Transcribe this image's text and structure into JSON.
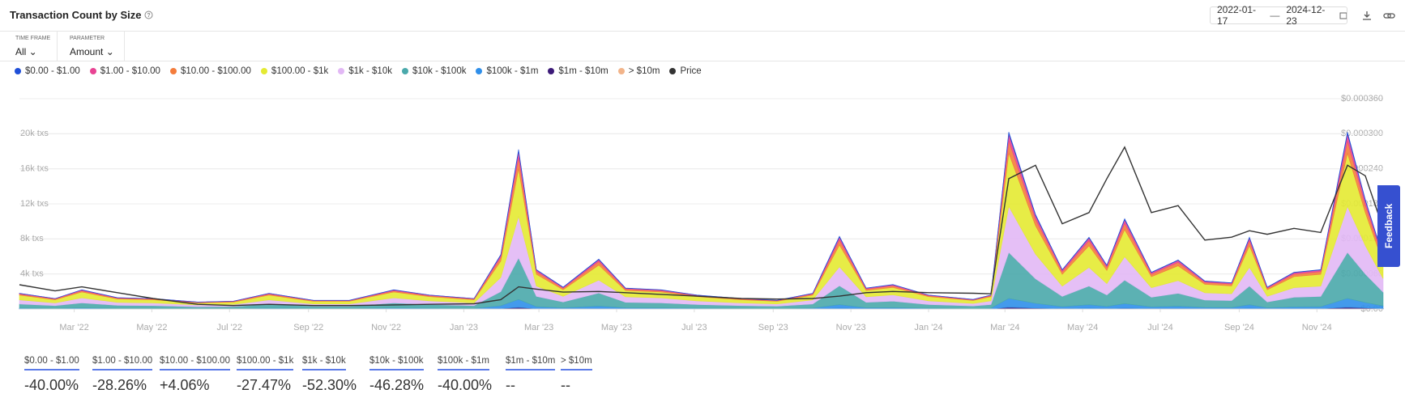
{
  "header": {
    "title": "Transaction Count by Size",
    "date_from": "2022-01-17",
    "date_to": "2024-12-23",
    "filters": [
      {
        "label": "TIME FRAME",
        "value": "All"
      },
      {
        "label": "PARAMETER",
        "value": "Amount"
      }
    ],
    "feedback": "Feedback"
  },
  "chart_data": {
    "type": "area",
    "x": [
      "2022-01-17",
      "2022-02-14",
      "2022-03-07",
      "2022-04-04",
      "2022-05-02",
      "2022-06-06",
      "2022-07-04",
      "2022-08-01",
      "2022-09-05",
      "2022-10-03",
      "2022-11-07",
      "2022-12-05",
      "2023-01-09",
      "2023-01-30",
      "2023-02-13",
      "2023-02-27",
      "2023-03-20",
      "2023-04-17",
      "2023-05-08",
      "2023-06-05",
      "2023-07-03",
      "2023-08-07",
      "2023-09-04",
      "2023-10-02",
      "2023-10-23",
      "2023-11-13",
      "2023-12-04",
      "2024-01-01",
      "2024-02-05",
      "2024-02-19",
      "2024-03-04",
      "2024-03-25",
      "2024-04-15",
      "2024-05-06",
      "2024-05-20",
      "2024-06-03",
      "2024-06-24",
      "2024-07-15",
      "2024-08-05",
      "2024-08-26",
      "2024-09-09",
      "2024-09-23",
      "2024-10-14",
      "2024-11-04",
      "2024-11-25",
      "2024-12-09",
      "2024-12-23"
    ],
    "xlim": [
      "2022-01-17",
      "2024-12-23"
    ],
    "xticks": [
      {
        "value": "2022-03-01",
        "label": "Mar '22"
      },
      {
        "value": "2022-05-01",
        "label": "May '22"
      },
      {
        "value": "2022-07-01",
        "label": "Jul '22"
      },
      {
        "value": "2022-09-01",
        "label": "Sep '22"
      },
      {
        "value": "2022-11-01",
        "label": "Nov '22"
      },
      {
        "value": "2023-01-01",
        "label": "Jan '23"
      },
      {
        "value": "2023-03-01",
        "label": "Mar '23"
      },
      {
        "value": "2023-05-01",
        "label": "May '23"
      },
      {
        "value": "2023-07-01",
        "label": "Jul '23"
      },
      {
        "value": "2023-09-01",
        "label": "Sep '23"
      },
      {
        "value": "2023-11-01",
        "label": "Nov '23"
      },
      {
        "value": "2024-01-01",
        "label": "Jan '24"
      },
      {
        "value": "2024-03-01",
        "label": "Mar '24"
      },
      {
        "value": "2024-05-01",
        "label": "May '24"
      },
      {
        "value": "2024-07-01",
        "label": "Jul '24"
      },
      {
        "value": "2024-09-01",
        "label": "Sep '24"
      },
      {
        "value": "2024-11-01",
        "label": "Nov '24"
      }
    ],
    "ylim": [
      0,
      24000
    ],
    "yticks": [
      {
        "value": 4000,
        "label": "4k txs"
      },
      {
        "value": 8000,
        "label": "8k txs"
      },
      {
        "value": 12000,
        "label": "12k txs"
      },
      {
        "value": 16000,
        "label": "16k txs"
      },
      {
        "value": 20000,
        "label": "20k txs"
      }
    ],
    "y2lim": [
      0,
      0.00036
    ],
    "y2ticks": [
      {
        "value": 0,
        "label": "$0.00"
      },
      {
        "value": 6e-05,
        "label": "$0.000060"
      },
      {
        "value": 0.00012,
        "label": "$0.000120"
      },
      {
        "value": 0.00018,
        "label": "$0.000180"
      },
      {
        "value": 0.00024,
        "label": "$0.000240"
      },
      {
        "value": 0.0003,
        "label": "$0.000300"
      },
      {
        "value": 0.00036,
        "label": "$0.000360"
      }
    ],
    "grid": true,
    "series": [
      {
        "name": "$0.00 - $1.00",
        "color": "#1f4fd8",
        "values": [
          18,
          12,
          22,
          13,
          12,
          8,
          9,
          18,
          10,
          10,
          22,
          16,
          12,
          62,
          182,
          45,
          25,
          57,
          24,
          22,
          16,
          12,
          10,
          18,
          83,
          24,
          28,
          16,
          11,
          16,
          202,
          108,
          45,
          82,
          50,
          103,
          42,
          56,
          32,
          30,
          82,
          25,
          42,
          45,
          202,
          125,
          60
        ]
      },
      {
        "name": "$1.00 - $10.00",
        "color": "#e84393",
        "values": [
          72,
          48,
          88,
          52,
          48,
          32,
          36,
          72,
          40,
          40,
          88,
          64,
          48,
          248,
          728,
          180,
          100,
          228,
          96,
          88,
          64,
          48,
          40,
          72,
          332,
          96,
          112,
          64,
          44,
          64,
          808,
          432,
          180,
          328,
          200,
          412,
          168,
          224,
          128,
          120,
          328,
          100,
          168,
          180,
          808,
          500,
          240
        ]
      },
      {
        "name": "$10.00 - $100.00",
        "color": "#f47c3c",
        "values": [
          126,
          84,
          154,
          91,
          84,
          56,
          63,
          126,
          70,
          70,
          154,
          112,
          84,
          434,
          1274,
          315,
          175,
          399,
          168,
          154,
          112,
          84,
          70,
          126,
          581,
          168,
          196,
          112,
          77,
          112,
          1414,
          756,
          315,
          574,
          350,
          721,
          294,
          392,
          224,
          210,
          574,
          175,
          294,
          315,
          1414,
          875,
          420
        ]
      },
      {
        "name": "$100.00 - $1k",
        "color": "#e4ea32",
        "values": [
          540,
          360,
          660,
          390,
          360,
          240,
          270,
          540,
          300,
          300,
          660,
          480,
          360,
          1860,
          5460,
          1350,
          750,
          1710,
          720,
          660,
          480,
          360,
          300,
          540,
          2490,
          720,
          840,
          480,
          330,
          480,
          6060,
          3240,
          1350,
          2460,
          1500,
          3090,
          1260,
          1680,
          960,
          900,
          2460,
          750,
          1260,
          1350,
          6060,
          3750,
          1800
        ]
      },
      {
        "name": "$1k - $10k",
        "color": "#e2b8f5",
        "values": [
          468,
          312,
          572,
          338,
          312,
          208,
          234,
          468,
          260,
          260,
          572,
          416,
          312,
          1612,
          4732,
          1170,
          650,
          1482,
          624,
          572,
          416,
          312,
          260,
          468,
          2158,
          624,
          728,
          416,
          286,
          416,
          5252,
          2808,
          1170,
          2132,
          1300,
          2678,
          1092,
          1456,
          832,
          780,
          2132,
          650,
          1092,
          1170,
          5252,
          3250,
          1560
        ]
      },
      {
        "name": "$10k - $100k",
        "color": "#4aa9ab",
        "values": [
          468,
          312,
          572,
          338,
          312,
          208,
          234,
          468,
          260,
          260,
          572,
          416,
          312,
          1612,
          4732,
          1170,
          650,
          1482,
          624,
          572,
          416,
          312,
          260,
          468,
          2158,
          624,
          728,
          416,
          286,
          416,
          5252,
          2808,
          1170,
          2132,
          1300,
          2678,
          1092,
          1456,
          832,
          780,
          2132,
          650,
          1092,
          1170,
          5252,
          3250,
          1560
        ]
      },
      {
        "name": "$100k - $1m",
        "color": "#2f8fea",
        "values": [
          90,
          60,
          110,
          65,
          60,
          40,
          45,
          90,
          50,
          50,
          110,
          80,
          60,
          310,
          910,
          225,
          125,
          285,
          120,
          110,
          80,
          60,
          50,
          90,
          415,
          120,
          140,
          80,
          55,
          80,
          1010,
          540,
          225,
          410,
          250,
          515,
          210,
          280,
          160,
          150,
          410,
          125,
          210,
          225,
          1010,
          625,
          300
        ]
      },
      {
        "name": "$1m - $10m",
        "color": "#3c1a78",
        "values": [
          14,
          10,
          18,
          10,
          10,
          6,
          7,
          14,
          8,
          8,
          18,
          13,
          10,
          50,
          146,
          36,
          20,
          46,
          19,
          18,
          13,
          10,
          8,
          14,
          66,
          19,
          22,
          13,
          9,
          13,
          162,
          86,
          36,
          66,
          40,
          82,
          34,
          45,
          26,
          24,
          66,
          20,
          34,
          36,
          162,
          100,
          48
        ]
      },
      {
        "name": "> $10m",
        "color": "#f2b48a",
        "values": [
          4,
          2,
          4,
          3,
          2,
          2,
          2,
          4,
          2,
          2,
          4,
          3,
          2,
          12,
          36,
          9,
          5,
          11,
          5,
          4,
          3,
          2,
          2,
          4,
          17,
          5,
          6,
          3,
          2,
          3,
          40,
          22,
          9,
          16,
          10,
          21,
          8,
          11,
          6,
          6,
          16,
          5,
          8,
          9,
          40,
          25,
          12
        ]
      },
      {
        "name": "Price",
        "color": "#333333",
        "axis": "y2",
        "values": [
          4.15e-05,
          3.1e-05,
          3.8e-05,
          2.8e-05,
          1.8e-05,
          8e-06,
          6e-06,
          8e-06,
          6e-06,
          6e-06,
          7e-06,
          8e-06,
          9e-06,
          1.6e-05,
          3.8e-05,
          3.4e-05,
          2.9e-05,
          3e-05,
          2.8e-05,
          2.5e-05,
          2.2e-05,
          1.8e-05,
          1.7e-05,
          1.8e-05,
          2.2e-05,
          2.8e-05,
          3e-05,
          2.8e-05,
          2.7e-05,
          2.6e-05,
          0.000223,
          0.000246,
          0.000146,
          0.000165,
          0.000223,
          0.000277,
          0.000165,
          0.000177,
          0.000118,
          0.000123,
          0.000134,
          0.000128,
          0.000138,
          0.000131,
          0.000246,
          0.000228,
          0.000138
        ]
      }
    ]
  },
  "summary": [
    {
      "label": "$0.00 - $1.00",
      "change": "-40.00%"
    },
    {
      "label": "$1.00 - $10.00",
      "change": "-28.26%"
    },
    {
      "label": "$10.00 - $100.00",
      "change": "+4.06%"
    },
    {
      "label": "$100.00 - $1k",
      "change": "-27.47%"
    },
    {
      "label": "$1k - $10k",
      "change": "-52.30%"
    },
    {
      "label": "$10k - $100k",
      "change": "-46.28%"
    },
    {
      "label": "$100k - $1m",
      "change": "-40.00%"
    },
    {
      "label": "$1m - $10m",
      "change": "--"
    },
    {
      "label": "> $10m",
      "change": "--"
    }
  ]
}
